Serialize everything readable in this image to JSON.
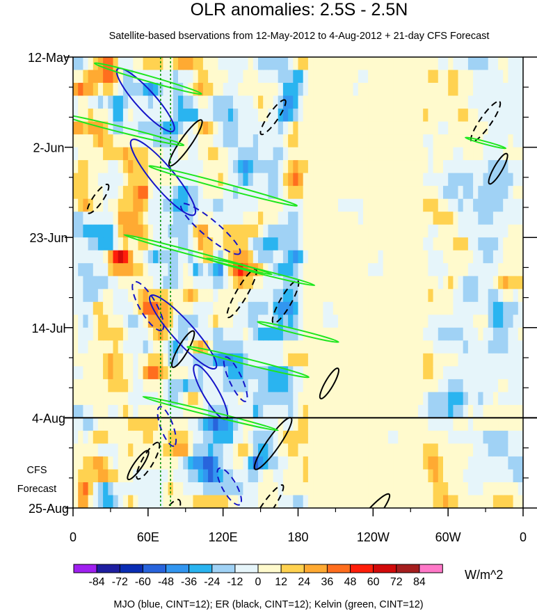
{
  "chart_data": {
    "type": "heatmap",
    "title": "OLR anomalies: 2.5S - 2.5N",
    "subtitle": "Satellite-based bservations from 12-May-2012 to 4-Aug-2012 + 21-day CFS Forecast",
    "x_axis": {
      "ticks": [
        "0",
        "60E",
        "120E",
        "180",
        "120W",
        "60W",
        "0"
      ],
      "tick_lon": [
        0,
        60,
        120,
        180,
        240,
        300,
        360
      ],
      "range": [
        0,
        360
      ]
    },
    "y_axis": {
      "ticks": [
        "12-May",
        "2-Jun",
        "23-Jun",
        "14-Jul",
        "4-Aug",
        "25-Aug"
      ],
      "range": [
        "2012-05-12",
        "2012-08-25"
      ],
      "reversed": true
    },
    "observation_end": "4-Aug",
    "forecast_label": [
      "CFS",
      "Forecast"
    ],
    "forecast_days": 21,
    "colorbar": {
      "units": "W/m^2",
      "levels": [
        -84,
        -72,
        -60,
        -48,
        -36,
        -24,
        -12,
        0,
        12,
        24,
        36,
        48,
        60,
        72,
        84
      ],
      "labels": [
        "-84",
        "-72",
        "-60",
        "-48",
        "-36",
        "-24",
        "-12",
        "0",
        "12",
        "24",
        "36",
        "48",
        "60",
        "72",
        "84"
      ],
      "colors": [
        "#a020f0",
        "#1e1ea0",
        "#0a2db4",
        "#2864dc",
        "#3296f0",
        "#2ab4f0",
        "#a0d2f5",
        "#e6f5fa",
        "#fffacd",
        "#ffd250",
        "#ffaa32",
        "#ff6e1e",
        "#ff1e0a",
        "#d20a0a",
        "#a51e1e",
        "#ff78c8"
      ]
    },
    "contours": [
      {
        "name": "MJO",
        "color": "#1414c8",
        "cint": 12
      },
      {
        "name": "ER",
        "color": "#000000",
        "cint": 12
      },
      {
        "name": "Kelvin",
        "color": "#1ee61e",
        "cint": 12
      }
    ],
    "caption": "MJO (blue, CINT=12); ER (black, CINT=12); Kelvin (green, CINT=12)"
  },
  "colors": {
    "background": "#ffffff",
    "axis": "#000000",
    "reference_line": "#009000"
  }
}
